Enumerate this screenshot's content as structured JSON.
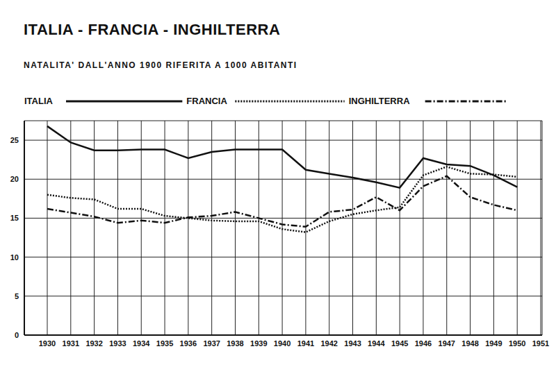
{
  "chart_data": {
    "type": "line",
    "title": "ITALIA - FRANCIA - INGHILTERRA",
    "subtitle": "NATALITA' DALL'ANNO 1900 RIFERITA A 1000 ABITANTI",
    "categories": [
      "1930",
      "1931",
      "1932",
      "1933",
      "1934",
      "1935",
      "1936",
      "1937",
      "1938",
      "1939",
      "1940",
      "1941",
      "1942",
      "1943",
      "1944",
      "1945",
      "1946",
      "1947",
      "1948",
      "1949",
      "1950",
      "1951"
    ],
    "series": [
      {
        "name": "ITALIA",
        "color": "#111111",
        "line_style": "solid",
        "values": [
          26.8,
          24.7,
          23.7,
          23.7,
          23.8,
          23.8,
          22.7,
          23.5,
          23.8,
          23.8,
          23.8,
          21.2,
          20.7,
          20.2,
          19.6,
          18.9,
          22.7,
          21.9,
          21.7,
          20.5,
          19.0,
          null
        ]
      },
      {
        "name": "FRANCIA",
        "color": "#111111",
        "line_style": "dotted",
        "values": [
          18.0,
          17.6,
          17.4,
          16.2,
          16.2,
          15.3,
          15.0,
          14.7,
          14.6,
          14.6,
          13.6,
          13.2,
          14.6,
          15.5,
          16.0,
          16.4,
          20.5,
          21.6,
          20.7,
          20.6,
          20.3,
          null
        ]
      },
      {
        "name": "INGHILTERRA",
        "color": "#111111",
        "line_style": "dashdot",
        "values": [
          16.2,
          15.7,
          15.2,
          14.4,
          14.7,
          14.4,
          15.1,
          15.3,
          15.8,
          15.0,
          14.2,
          13.9,
          15.8,
          16.1,
          17.7,
          16.0,
          19.1,
          20.4,
          17.7,
          16.7,
          16.0,
          null
        ]
      }
    ],
    "ylim": [
      0,
      27.5
    ],
    "yticks": [
      0,
      5,
      10,
      15,
      20,
      25
    ],
    "grid": true,
    "legend": "top"
  }
}
